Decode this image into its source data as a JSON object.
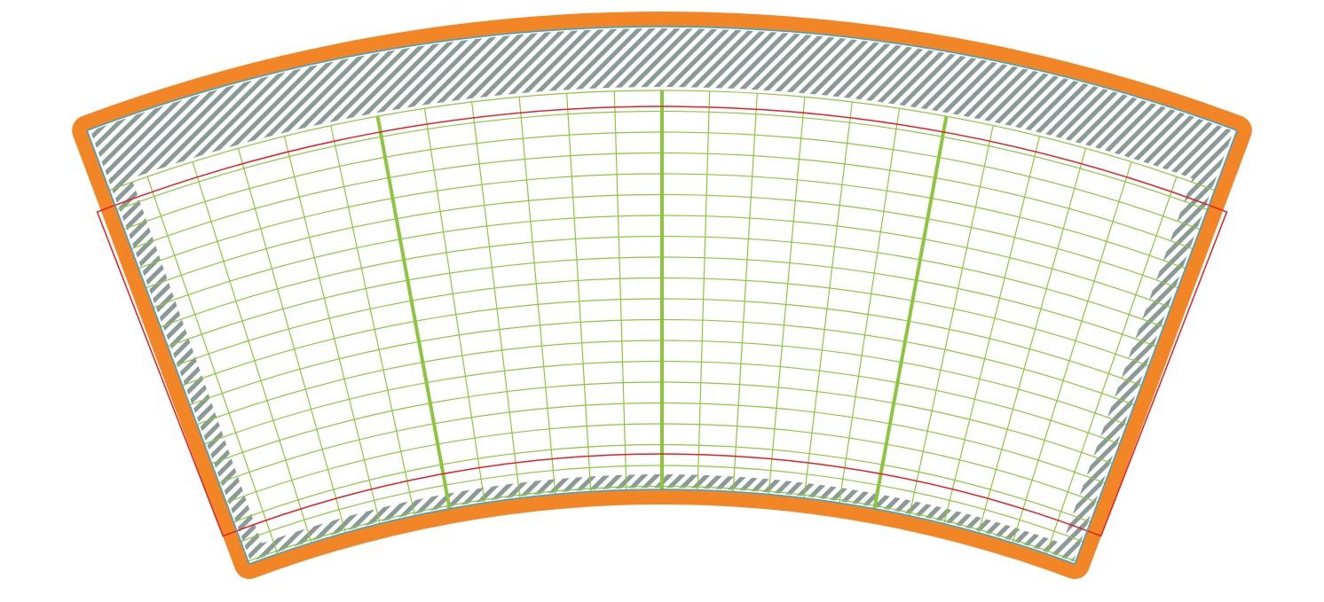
{
  "template": {
    "type": "curved-label-wrap-template",
    "colors": {
      "outer_border": "#f28627",
      "cut_line": "#3aa3c7",
      "bleed_hatch": "#8a9a96",
      "grid": "#8cc63f",
      "safe_line": "#e31e25",
      "paper": "#ffffff"
    },
    "grid": {
      "vertical_divisions": 26,
      "major_every": 6,
      "horizontal_arcs": 20
    }
  }
}
